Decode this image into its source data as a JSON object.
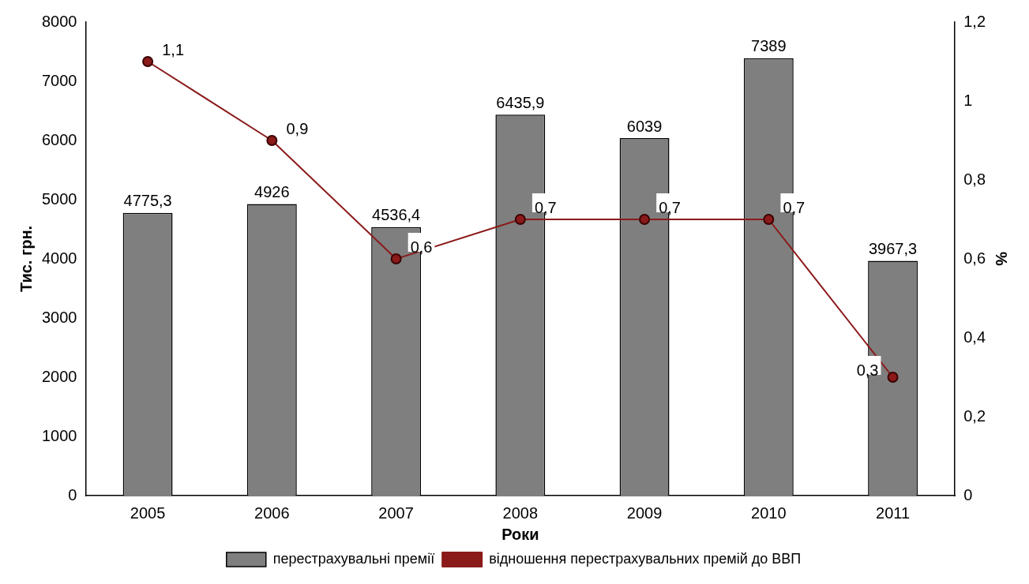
{
  "chart_data": {
    "type": "bar",
    "xlabel": "Роки",
    "ylabel": "Тис. грн.",
    "y2label": "%",
    "categories": [
      "2005",
      "2006",
      "2007",
      "2008",
      "2009",
      "2010",
      "2011"
    ],
    "series": [
      {
        "name": "перестрахувальні премії",
        "color": "#7f7f7f",
        "values": [
          4775.3,
          4926,
          4536.4,
          6435.9,
          6039,
          7389,
          3967.3
        ],
        "value_labels": [
          "4775,3",
          "4926",
          "4536,4",
          "6435,9",
          "6039",
          "7389",
          "3967,3"
        ]
      },
      {
        "name": "відношення перестрахувальних премій до ВВП",
        "type": "line",
        "axis": "y2",
        "color": "#8b1a1a",
        "marker": "circle",
        "values": [
          1.1,
          0.9,
          0.6,
          0.7,
          0.7,
          0.7,
          0.3
        ],
        "value_labels": [
          "1,1",
          "0,9",
          "0,6",
          "0,7",
          "0,7",
          "0,7",
          "0,3"
        ]
      }
    ],
    "ylim": [
      0,
      8000
    ],
    "yticks": [
      0,
      1000,
      2000,
      3000,
      4000,
      5000,
      6000,
      7000,
      8000
    ],
    "y2lim": [
      0,
      1.2
    ],
    "y2ticks": [
      0,
      {
        "value": 0.2,
        "label": "0,2"
      },
      {
        "value": 0.4,
        "label": "0,4"
      },
      {
        "value": 0.6,
        "label": "0,6"
      },
      {
        "value": 0.8,
        "label": "0,8"
      },
      1,
      {
        "value": 1.2,
        "label": "1,2"
      }
    ],
    "grid": false,
    "legend": "bottom"
  }
}
